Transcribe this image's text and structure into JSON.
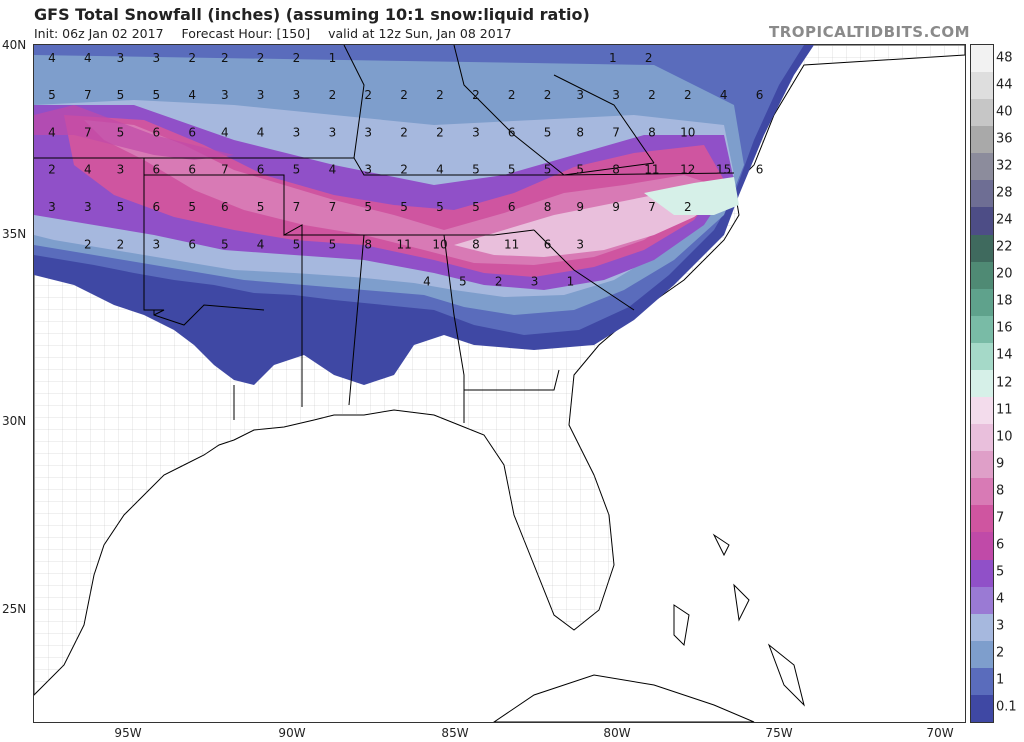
{
  "header": {
    "title": "GFS Total Snowfall (inches) (assuming 10:1 snow:liquid ratio)",
    "init": "Init: 06z Jan 02 2017",
    "forecast_hour": "Forecast Hour: [150]",
    "valid": "valid at 12z Sun, Jan 08 2017",
    "brand": "TROPICALTIDBITS.COM"
  },
  "axes": {
    "lat_labels": [
      "40N",
      "35N",
      "30N",
      "25N"
    ],
    "lon_labels": [
      "95W",
      "90W",
      "85W",
      "80W",
      "75W",
      "70W"
    ]
  },
  "colorbar": {
    "labels": [
      "48",
      "44",
      "40",
      "36",
      "32",
      "28",
      "24",
      "22",
      "20",
      "18",
      "16",
      "14",
      "12",
      "11",
      "10",
      "9",
      "8",
      "7",
      "6",
      "5",
      "4",
      "3",
      "2",
      "1",
      "0.1"
    ],
    "colors": [
      "#f2f2f2",
      "#dedede",
      "#c6c6c6",
      "#a9a9a9",
      "#8c8c9c",
      "#6e6e94",
      "#4d4d86",
      "#3f6a5e",
      "#4f8a74",
      "#5fa28c",
      "#79bba6",
      "#a5d9c8",
      "#d6f0e8",
      "#f3dcec",
      "#e9bfdc",
      "#df9fc8",
      "#d87ab5",
      "#cf55a0",
      "#c04aa8",
      "#9050c8",
      "#9a7ad4",
      "#a6b8de",
      "#7e9ecc",
      "#5a6cbc",
      "#3f48a4"
    ]
  },
  "map_values": [
    {
      "v": "4",
      "lon": -97.8,
      "lat": 39.6
    },
    {
      "v": "4",
      "lon": -96.7,
      "lat": 39.6
    },
    {
      "v": "3",
      "lon": -95.7,
      "lat": 39.6
    },
    {
      "v": "3",
      "lon": -94.6,
      "lat": 39.6
    },
    {
      "v": "2",
      "lon": -93.5,
      "lat": 39.6
    },
    {
      "v": "2",
      "lon": -92.5,
      "lat": 39.6
    },
    {
      "v": "2",
      "lon": -91.4,
      "lat": 39.6
    },
    {
      "v": "2",
      "lon": -90.3,
      "lat": 39.6
    },
    {
      "v": "1",
      "lon": -89.2,
      "lat": 39.6
    },
    {
      "v": "1",
      "lon": -80.6,
      "lat": 39.6
    },
    {
      "v": "2",
      "lon": -79.5,
      "lat": 39.6
    },
    {
      "v": "5",
      "lon": -97.8,
      "lat": 38.6
    },
    {
      "v": "7",
      "lon": -96.7,
      "lat": 38.6
    },
    {
      "v": "5",
      "lon": -95.7,
      "lat": 38.6
    },
    {
      "v": "5",
      "lon": -94.6,
      "lat": 38.6
    },
    {
      "v": "4",
      "lon": -93.5,
      "lat": 38.6
    },
    {
      "v": "3",
      "lon": -92.5,
      "lat": 38.6
    },
    {
      "v": "3",
      "lon": -91.4,
      "lat": 38.6
    },
    {
      "v": "3",
      "lon": -90.3,
      "lat": 38.6
    },
    {
      "v": "2",
      "lon": -89.2,
      "lat": 38.6
    },
    {
      "v": "2",
      "lon": -88.1,
      "lat": 38.6
    },
    {
      "v": "2",
      "lon": -87.0,
      "lat": 38.6
    },
    {
      "v": "2",
      "lon": -85.9,
      "lat": 38.6
    },
    {
      "v": "2",
      "lon": -84.8,
      "lat": 38.6
    },
    {
      "v": "2",
      "lon": -83.7,
      "lat": 38.6
    },
    {
      "v": "2",
      "lon": -82.6,
      "lat": 38.6
    },
    {
      "v": "3",
      "lon": -81.6,
      "lat": 38.6
    },
    {
      "v": "3",
      "lon": -80.5,
      "lat": 38.6
    },
    {
      "v": "2",
      "lon": -79.4,
      "lat": 38.6
    },
    {
      "v": "2",
      "lon": -78.3,
      "lat": 38.6
    },
    {
      "v": "4",
      "lon": -77.2,
      "lat": 38.6
    },
    {
      "v": "6",
      "lon": -76.1,
      "lat": 38.6
    },
    {
      "v": "4",
      "lon": -97.8,
      "lat": 37.6
    },
    {
      "v": "7",
      "lon": -96.7,
      "lat": 37.6
    },
    {
      "v": "5",
      "lon": -95.7,
      "lat": 37.6
    },
    {
      "v": "6",
      "lon": -94.6,
      "lat": 37.6
    },
    {
      "v": "6",
      "lon": -93.5,
      "lat": 37.6
    },
    {
      "v": "4",
      "lon": -92.5,
      "lat": 37.6
    },
    {
      "v": "4",
      "lon": -91.4,
      "lat": 37.6
    },
    {
      "v": "3",
      "lon": -90.3,
      "lat": 37.6
    },
    {
      "v": "3",
      "lon": -89.2,
      "lat": 37.6
    },
    {
      "v": "3",
      "lon": -88.1,
      "lat": 37.6
    },
    {
      "v": "2",
      "lon": -87.0,
      "lat": 37.6
    },
    {
      "v": "2",
      "lon": -85.9,
      "lat": 37.6
    },
    {
      "v": "3",
      "lon": -84.8,
      "lat": 37.6
    },
    {
      "v": "6",
      "lon": -83.7,
      "lat": 37.6
    },
    {
      "v": "5",
      "lon": -82.6,
      "lat": 37.6
    },
    {
      "v": "8",
      "lon": -81.6,
      "lat": 37.6
    },
    {
      "v": "7",
      "lon": -80.5,
      "lat": 37.6
    },
    {
      "v": "8",
      "lon": -79.4,
      "lat": 37.6
    },
    {
      "v": "10",
      "lon": -78.3,
      "lat": 37.6
    },
    {
      "v": "2",
      "lon": -97.8,
      "lat": 36.6
    },
    {
      "v": "4",
      "lon": -96.7,
      "lat": 36.6
    },
    {
      "v": "3",
      "lon": -95.7,
      "lat": 36.6
    },
    {
      "v": "6",
      "lon": -94.6,
      "lat": 36.6
    },
    {
      "v": "6",
      "lon": -93.5,
      "lat": 36.6
    },
    {
      "v": "7",
      "lon": -92.5,
      "lat": 36.6
    },
    {
      "v": "6",
      "lon": -91.4,
      "lat": 36.6
    },
    {
      "v": "5",
      "lon": -90.3,
      "lat": 36.6
    },
    {
      "v": "4",
      "lon": -89.2,
      "lat": 36.6
    },
    {
      "v": "3",
      "lon": -88.1,
      "lat": 36.6
    },
    {
      "v": "2",
      "lon": -87.0,
      "lat": 36.6
    },
    {
      "v": "4",
      "lon": -85.9,
      "lat": 36.6
    },
    {
      "v": "5",
      "lon": -84.8,
      "lat": 36.6
    },
    {
      "v": "5",
      "lon": -83.7,
      "lat": 36.6
    },
    {
      "v": "5",
      "lon": -82.6,
      "lat": 36.6
    },
    {
      "v": "5",
      "lon": -81.6,
      "lat": 36.6
    },
    {
      "v": "8",
      "lon": -80.5,
      "lat": 36.6
    },
    {
      "v": "11",
      "lon": -79.4,
      "lat": 36.6
    },
    {
      "v": "12",
      "lon": -78.3,
      "lat": 36.6
    },
    {
      "v": "15",
      "lon": -77.2,
      "lat": 36.6
    },
    {
      "v": "6",
      "lon": -76.1,
      "lat": 36.6
    },
    {
      "v": "3",
      "lon": -97.8,
      "lat": 35.6
    },
    {
      "v": "3",
      "lon": -96.7,
      "lat": 35.6
    },
    {
      "v": "5",
      "lon": -95.7,
      "lat": 35.6
    },
    {
      "v": "6",
      "lon": -94.6,
      "lat": 35.6
    },
    {
      "v": "5",
      "lon": -93.5,
      "lat": 35.6
    },
    {
      "v": "6",
      "lon": -92.5,
      "lat": 35.6
    },
    {
      "v": "5",
      "lon": -91.4,
      "lat": 35.6
    },
    {
      "v": "7",
      "lon": -90.3,
      "lat": 35.6
    },
    {
      "v": "7",
      "lon": -89.2,
      "lat": 35.6
    },
    {
      "v": "5",
      "lon": -88.1,
      "lat": 35.6
    },
    {
      "v": "5",
      "lon": -87.0,
      "lat": 35.6
    },
    {
      "v": "5",
      "lon": -85.9,
      "lat": 35.6
    },
    {
      "v": "5",
      "lon": -84.8,
      "lat": 35.6
    },
    {
      "v": "6",
      "lon": -83.7,
      "lat": 35.6
    },
    {
      "v": "8",
      "lon": -82.6,
      "lat": 35.6
    },
    {
      "v": "9",
      "lon": -81.6,
      "lat": 35.6
    },
    {
      "v": "9",
      "lon": -80.5,
      "lat": 35.6
    },
    {
      "v": "7",
      "lon": -79.4,
      "lat": 35.6
    },
    {
      "v": "2",
      "lon": -78.3,
      "lat": 35.6
    },
    {
      "v": "2",
      "lon": -96.7,
      "lat": 34.6
    },
    {
      "v": "2",
      "lon": -95.7,
      "lat": 34.6
    },
    {
      "v": "3",
      "lon": -94.6,
      "lat": 34.6
    },
    {
      "v": "6",
      "lon": -93.5,
      "lat": 34.6
    },
    {
      "v": "5",
      "lon": -92.5,
      "lat": 34.6
    },
    {
      "v": "4",
      "lon": -91.4,
      "lat": 34.6
    },
    {
      "v": "5",
      "lon": -90.3,
      "lat": 34.6
    },
    {
      "v": "5",
      "lon": -89.2,
      "lat": 34.6
    },
    {
      "v": "8",
      "lon": -88.1,
      "lat": 34.6
    },
    {
      "v": "11",
      "lon": -87.0,
      "lat": 34.6
    },
    {
      "v": "10",
      "lon": -85.9,
      "lat": 34.6
    },
    {
      "v": "8",
      "lon": -84.8,
      "lat": 34.6
    },
    {
      "v": "11",
      "lon": -83.7,
      "lat": 34.6
    },
    {
      "v": "6",
      "lon": -82.6,
      "lat": 34.6
    },
    {
      "v": "3",
      "lon": -81.6,
      "lat": 34.6
    },
    {
      "v": "4",
      "lon": -86.3,
      "lat": 33.6
    },
    {
      "v": "5",
      "lon": -85.2,
      "lat": 33.6
    },
    {
      "v": "2",
      "lon": -84.1,
      "lat": 33.6
    },
    {
      "v": "3",
      "lon": -83.0,
      "lat": 33.6
    },
    {
      "v": "1",
      "lon": -81.9,
      "lat": 33.6
    }
  ]
}
